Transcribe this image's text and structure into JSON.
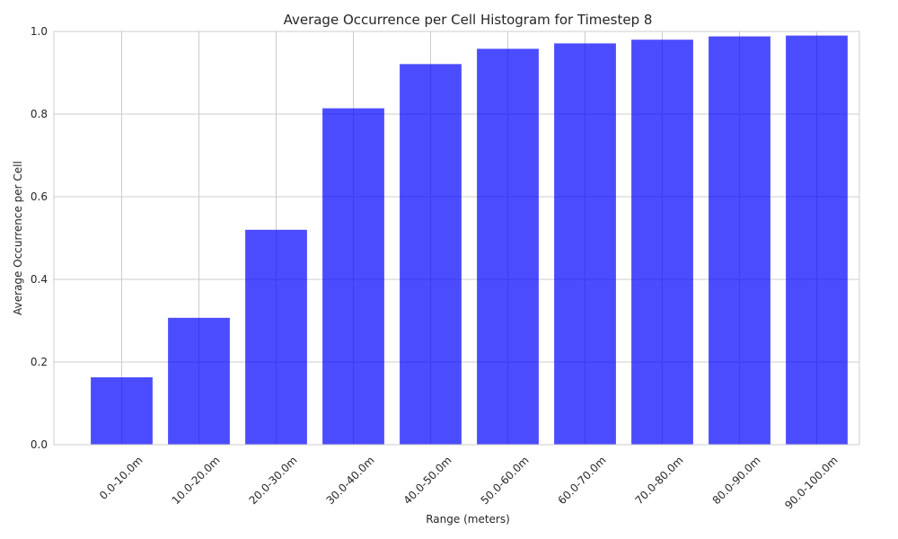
{
  "chart_data": {
    "type": "bar",
    "title": "Average Occurrence per Cell Histogram for Timestep 8",
    "xlabel": "Range (meters)",
    "ylabel": "Average Occurrence per Cell",
    "categories": [
      "0.0-10.0m",
      "10.0-20.0m",
      "20.0-30.0m",
      "30.0-40.0m",
      "40.0-50.0m",
      "50.0-60.0m",
      "60.0-70.0m",
      "70.0-80.0m",
      "80.0-90.0m",
      "90.0-100.0m"
    ],
    "values": [
      0.163,
      0.307,
      0.52,
      0.814,
      0.921,
      0.958,
      0.971,
      0.98,
      0.988,
      0.99
    ],
    "ylim": [
      0,
      1.0
    ],
    "yticks": [
      "0.0",
      "0.2",
      "0.4",
      "0.6",
      "0.8",
      "1.0"
    ],
    "grid": true,
    "bar_color": "#0000ff",
    "bar_opacity": 0.7
  }
}
